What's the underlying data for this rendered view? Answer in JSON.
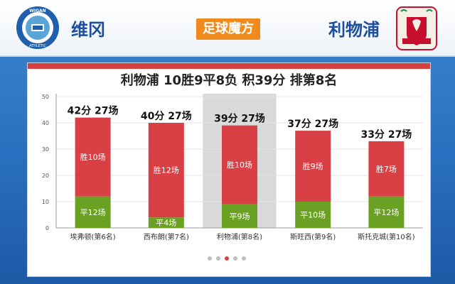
{
  "header": {
    "team_left": "维冈",
    "team_right": "利物浦",
    "brand": "足球魔方",
    "logo_left_text": "WIGAN ATHLETIC",
    "logo_right_text": "LIVERPOOL FC"
  },
  "colors": {
    "win": "#d94045",
    "draw": "#6aa123",
    "highlight": "#d9d9d9",
    "accent": "#d64040"
  },
  "chart_data": {
    "type": "bar",
    "title": "利物浦 10胜9平8负 积39分 排第8名",
    "categories": [
      "埃弗顿(第6名)",
      "西布朗(第7名)",
      "利物浦(第8名)",
      "斯旺西(第9名)",
      "斯托克城(第10名)"
    ],
    "series": [
      {
        "values": [
          12,
          4,
          9,
          10,
          12
        ],
        "labels": [
          "平12场",
          "平4场",
          "平9场",
          "平10场",
          "平12场"
        ]
      },
      {
        "values": [
          30,
          36,
          30,
          27,
          21
        ],
        "labels": [
          "胜10场",
          "胜12场",
          "胜10场",
          "胜9场",
          "胜7场"
        ]
      }
    ],
    "top_labels": [
      "42分 27场",
      "40分 27场",
      "39分 27场",
      "37分 27场",
      "33分 27场"
    ],
    "ylim": [
      0,
      50
    ],
    "yticks": [
      0,
      10,
      20,
      30,
      40,
      50
    ],
    "highlight_index": 2,
    "xlabel": "",
    "ylabel": ""
  },
  "pager": {
    "count": 5,
    "active": 2
  }
}
